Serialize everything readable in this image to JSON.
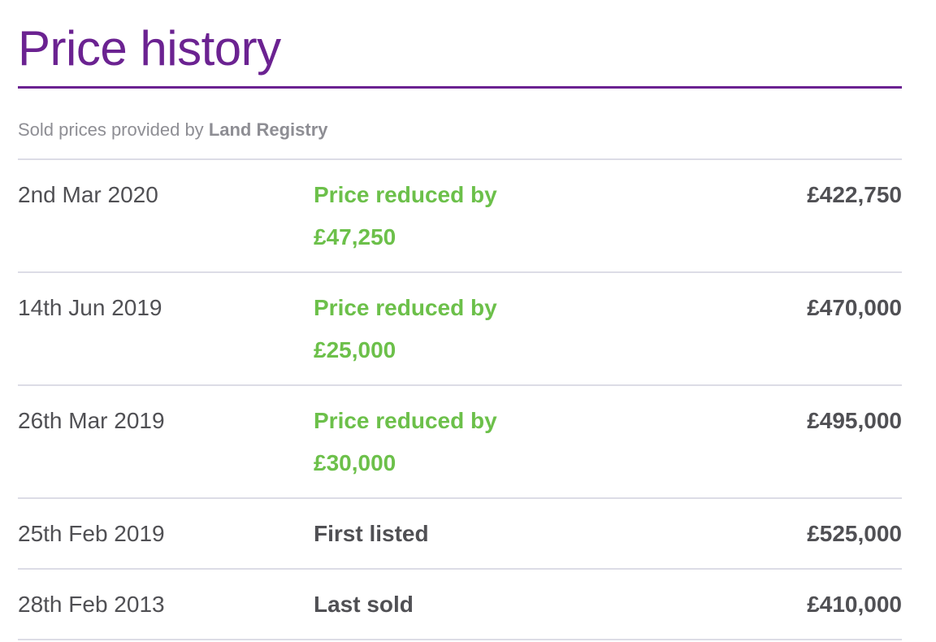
{
  "header": {
    "title": "Price history",
    "subtitle": "Sold prices provided by",
    "source": "Land Registry"
  },
  "table": {
    "rows": [
      {
        "date": "2nd Mar 2020",
        "event": "Price reduced by £47,250",
        "event_type": "reduced",
        "price": "£422,750"
      },
      {
        "date": "14th Jun 2019",
        "event": "Price reduced by £25,000",
        "event_type": "reduced",
        "price": "£470,000"
      },
      {
        "date": "26th Mar 2019",
        "event": "Price reduced by £30,000",
        "event_type": "reduced",
        "price": "£495,000"
      },
      {
        "date": "25th Feb 2019",
        "event": "First listed",
        "event_type": "plain",
        "price": "£525,000"
      },
      {
        "date": "28th Feb 2013",
        "event": "Last sold",
        "event_type": "plain",
        "price": "£410,000"
      }
    ]
  }
}
